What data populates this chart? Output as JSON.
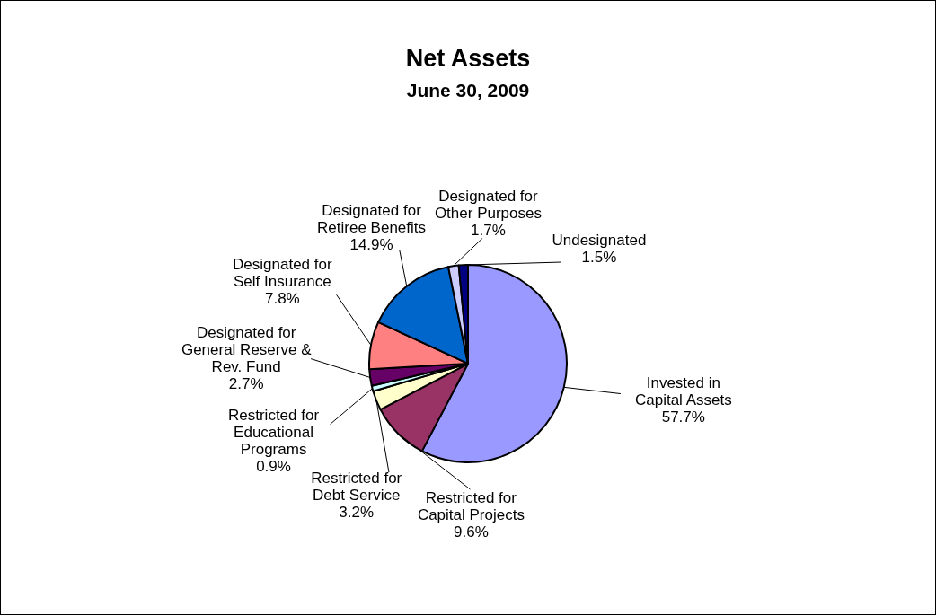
{
  "chart_data": {
    "type": "pie",
    "title": "Net Assets",
    "subtitle": "June 30, 2009",
    "categories": [
      "Invested in Capital Assets",
      "Restricted for Capital Projects",
      "Restricted for Debt Service",
      "Restricted for Educational Programs",
      "Designated for General Reserve & Rev. Fund",
      "Designated for Self Insurance",
      "Designated for Retiree Benefits",
      "Designated for Other Purposes",
      "Undesignated"
    ],
    "values": [
      57.7,
      9.6,
      3.2,
      0.9,
      2.7,
      7.8,
      14.9,
      1.7,
      1.5
    ],
    "value_labels": [
      "57.7%",
      "9.6%",
      "3.2%",
      "0.9%",
      "2.7%",
      "7.8%",
      "14.9%",
      "1.7%",
      "1.5%"
    ],
    "colors": [
      "#9999ff",
      "#993366",
      "#ffffcc",
      "#ccffff",
      "#660066",
      "#ff8080",
      "#0066cc",
      "#ccccff",
      "#000080"
    ]
  }
}
